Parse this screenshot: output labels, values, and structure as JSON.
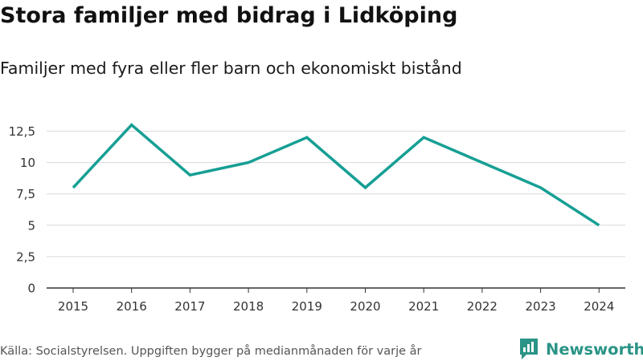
{
  "title": "Stora familjer med bidrag i Lidköping",
  "subtitle": "Familjer med fyra eller fler barn och ekonomiskt bistånd",
  "source": "Källa: Socialstyrelsen. Uppgiften bygger på medianmånaden för varje år",
  "brand": {
    "name": "Newsworthy"
  },
  "colors": {
    "line": "#169f94",
    "grid": "#d9d9d9",
    "axis": "#333333",
    "brand": "#2a9486"
  },
  "chart_data": {
    "type": "line",
    "title": "Stora familjer med bidrag i Lidköping",
    "subtitle": "Familjer med fyra eller fler barn och ekonomiskt bistånd",
    "xlabel": "",
    "ylabel": "",
    "categories": [
      "2015",
      "2016",
      "2017",
      "2018",
      "2019",
      "2020",
      "2021",
      "2022",
      "2023",
      "2024"
    ],
    "series": [
      {
        "name": "Familjer med fyra eller fler barn och ekonomiskt bistånd",
        "values": [
          8,
          13,
          9,
          10,
          12,
          8,
          12,
          10,
          8,
          5
        ]
      }
    ],
    "ylim": [
      0,
      13
    ],
    "yticks": [
      0,
      2.5,
      5,
      7.5,
      10,
      12.5
    ],
    "ytick_labels": [
      "0",
      "2,5",
      "5",
      "7,5",
      "10",
      "12,5"
    ],
    "grid": true
  }
}
